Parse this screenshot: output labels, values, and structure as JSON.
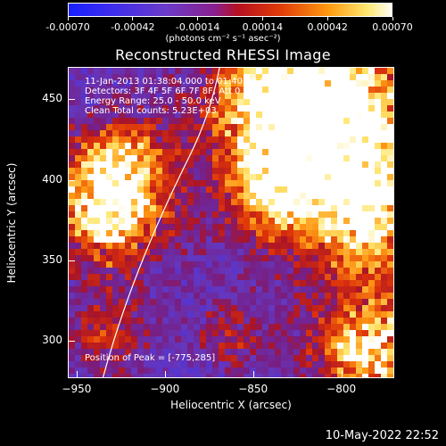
{
  "colorbar": {
    "ticks": [
      "-0.00070",
      "-0.00042",
      "-0.00014",
      "0.00014",
      "0.00042",
      "0.00070"
    ],
    "units": "(photons cm⁻² s⁻¹ asec⁻²)"
  },
  "plot": {
    "title": "Reconstructed RHESSI Image",
    "xlabel": "Heliocentric X (arcsec)",
    "ylabel": "Heliocentric Y (arcsec)",
    "x_ticks": [
      "−950",
      "−900",
      "−850",
      "−800"
    ],
    "y_ticks": [
      "450",
      "400",
      "350",
      "300"
    ]
  },
  "annotations": {
    "time": "11-Jan-2013 01:38:04.000 to 01:40:08.000",
    "detectors": "Detectors: 3F 4F 5F 6F 7F 8F, Att 0",
    "energy": "Energy Range: 25.0 - 50.0 keV",
    "method": "Clean     Total counts: 5.23E+03",
    "peak": "Position of Peak = [-775,285]"
  },
  "footer": {
    "date": "10-May-2022 22:52"
  },
  "chart_data": {
    "type": "heatmap",
    "title": "Reconstructed RHESSI Image",
    "xlabel": "Heliocentric X (arcsec)",
    "ylabel": "Heliocentric Y (arcsec)",
    "xlim": [
      -955,
      -770
    ],
    "ylim": [
      277,
      470
    ],
    "color_range": [
      -0.0007,
      0.0007
    ],
    "colormap": "blue-purple-red-yellow-white"
  }
}
